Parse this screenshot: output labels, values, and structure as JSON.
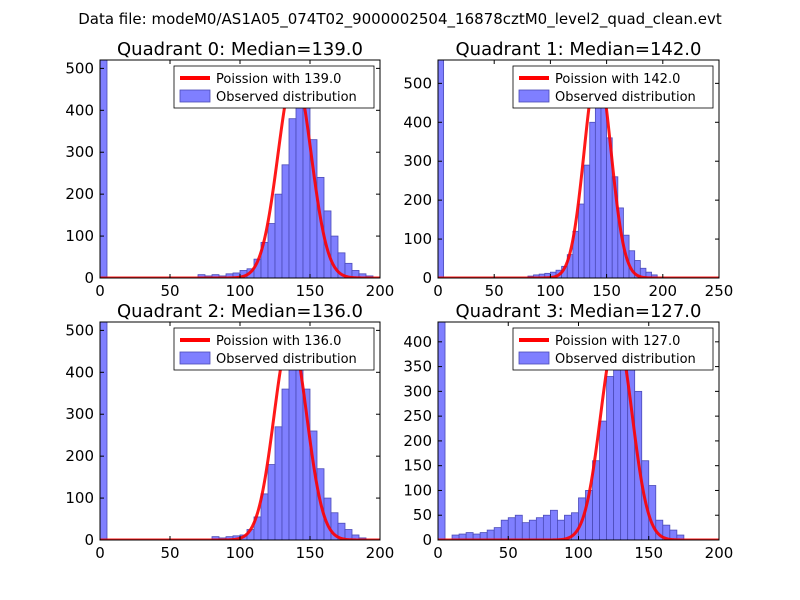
{
  "figure": {
    "suptitle": "Data file: modeM0/AS1A05_074T02_9000002504_16878cztM0_level2_quad_clean.evt"
  },
  "colors": {
    "bars_fill": "#7f7fff",
    "bars_edge": "#4b4bb8",
    "curve": "#ff0000",
    "axis": "#000000",
    "background": "#ffffff"
  },
  "chart_data": [
    {
      "type": "bar",
      "title": "Quadrant 0: Median=139.0",
      "legend": {
        "position": "top-right",
        "line_label": "Poission with 139.0",
        "bar_label": "Observed distribution"
      },
      "xlim": [
        0,
        200
      ],
      "ylim": [
        0,
        520
      ],
      "xticks": [
        0,
        50,
        100,
        150,
        200
      ],
      "yticks": [
        0,
        100,
        200,
        300,
        400,
        500
      ],
      "bin_width": 5,
      "bins": [
        [
          0,
          520
        ],
        [
          70,
          8
        ],
        [
          75,
          5
        ],
        [
          80,
          8
        ],
        [
          85,
          5
        ],
        [
          90,
          10
        ],
        [
          95,
          12
        ],
        [
          100,
          18
        ],
        [
          105,
          22
        ],
        [
          110,
          45
        ],
        [
          115,
          85
        ],
        [
          120,
          130
        ],
        [
          125,
          200
        ],
        [
          130,
          270
        ],
        [
          135,
          380
        ],
        [
          140,
          470
        ],
        [
          145,
          420
        ],
        [
          150,
          330
        ],
        [
          155,
          240
        ],
        [
          160,
          160
        ],
        [
          165,
          100
        ],
        [
          170,
          60
        ],
        [
          175,
          35
        ],
        [
          180,
          18
        ],
        [
          185,
          10
        ],
        [
          190,
          5
        ]
      ],
      "poisson_mean": 139.0,
      "poisson_scale": 490
    },
    {
      "type": "bar",
      "title": "Quadrant 1: Median=142.0",
      "legend": {
        "position": "top-right",
        "line_label": "Poission with 142.0",
        "bar_label": "Observed distribution"
      },
      "xlim": [
        0,
        250
      ],
      "ylim": [
        0,
        560
      ],
      "xticks": [
        0,
        50,
        100,
        150,
        200,
        250
      ],
      "yticks": [
        0,
        100,
        200,
        300,
        400,
        500
      ],
      "bin_width": 5,
      "bins": [
        [
          0,
          560
        ],
        [
          80,
          5
        ],
        [
          85,
          8
        ],
        [
          90,
          10
        ],
        [
          95,
          12
        ],
        [
          100,
          15
        ],
        [
          105,
          20
        ],
        [
          110,
          30
        ],
        [
          115,
          60
        ],
        [
          120,
          120
        ],
        [
          125,
          190
        ],
        [
          130,
          290
        ],
        [
          135,
          400
        ],
        [
          140,
          470
        ],
        [
          145,
          450
        ],
        [
          150,
          360
        ],
        [
          155,
          260
        ],
        [
          160,
          180
        ],
        [
          165,
          110
        ],
        [
          170,
          70
        ],
        [
          175,
          45
        ],
        [
          180,
          25
        ],
        [
          185,
          15
        ],
        [
          190,
          8
        ]
      ],
      "poisson_mean": 142.0,
      "poisson_scale": 540
    },
    {
      "type": "bar",
      "title": "Quadrant 2: Median=136.0",
      "legend": {
        "position": "top-right",
        "line_label": "Poission with 136.0",
        "bar_label": "Observed distribution"
      },
      "xlim": [
        0,
        200
      ],
      "ylim": [
        0,
        520
      ],
      "xticks": [
        0,
        50,
        100,
        150,
        200
      ],
      "yticks": [
        0,
        100,
        200,
        300,
        400,
        500
      ],
      "bin_width": 5,
      "bins": [
        [
          0,
          520
        ],
        [
          80,
          8
        ],
        [
          85,
          5
        ],
        [
          90,
          8
        ],
        [
          95,
          10
        ],
        [
          100,
          12
        ],
        [
          105,
          25
        ],
        [
          110,
          55
        ],
        [
          115,
          110
        ],
        [
          120,
          180
        ],
        [
          125,
          270
        ],
        [
          130,
          360
        ],
        [
          135,
          440
        ],
        [
          140,
          470
        ],
        [
          145,
          360
        ],
        [
          150,
          260
        ],
        [
          155,
          170
        ],
        [
          160,
          100
        ],
        [
          165,
          65
        ],
        [
          170,
          40
        ],
        [
          175,
          25
        ],
        [
          180,
          12
        ],
        [
          185,
          5
        ]
      ],
      "poisson_mean": 136.0,
      "poisson_scale": 490
    },
    {
      "type": "bar",
      "title": "Quadrant 3: Median=127.0",
      "legend": {
        "position": "top-right",
        "line_label": "Poission with 127.0",
        "bar_label": "Observed distribution"
      },
      "xlim": [
        0,
        200
      ],
      "ylim": [
        0,
        440
      ],
      "xticks": [
        0,
        50,
        100,
        150,
        200
      ],
      "yticks": [
        0,
        50,
        100,
        150,
        200,
        250,
        300,
        350,
        400
      ],
      "bin_width": 5,
      "bins": [
        [
          0,
          440
        ],
        [
          10,
          10
        ],
        [
          15,
          12
        ],
        [
          20,
          15
        ],
        [
          25,
          12
        ],
        [
          30,
          15
        ],
        [
          35,
          20
        ],
        [
          40,
          25
        ],
        [
          45,
          40
        ],
        [
          50,
          45
        ],
        [
          55,
          50
        ],
        [
          60,
          35
        ],
        [
          65,
          40
        ],
        [
          70,
          45
        ],
        [
          75,
          50
        ],
        [
          80,
          60
        ],
        [
          85,
          40
        ],
        [
          90,
          50
        ],
        [
          95,
          55
        ],
        [
          100,
          85
        ],
        [
          105,
          100
        ],
        [
          110,
          160
        ],
        [
          115,
          240
        ],
        [
          120,
          330
        ],
        [
          125,
          390
        ],
        [
          130,
          410
        ],
        [
          135,
          380
        ],
        [
          140,
          300
        ],
        [
          145,
          160
        ],
        [
          150,
          110
        ],
        [
          155,
          40
        ],
        [
          160,
          30
        ],
        [
          165,
          20
        ],
        [
          170,
          10
        ]
      ],
      "poisson_mean": 127.0,
      "poisson_scale": 415
    }
  ]
}
